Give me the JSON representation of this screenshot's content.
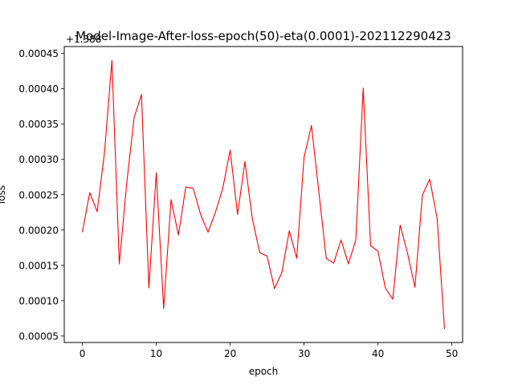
{
  "chart_data": {
    "type": "line",
    "title": "Model-Image-After-loss-epoch(50)-eta(0.0001)-202112290423",
    "xlabel": "epoch",
    "ylabel": "loss",
    "offset_label": "+1.388",
    "xlim": [
      -2.45,
      51.45
    ],
    "ylim": [
      4.08e-05,
      0.0004598
    ],
    "xticks": [
      0,
      10,
      20,
      30,
      40,
      50
    ],
    "xtick_labels": [
      "0",
      "10",
      "20",
      "30",
      "40",
      "50"
    ],
    "yticks": [
      5e-05,
      0.0001,
      0.00015,
      0.0002,
      0.00025,
      0.0003,
      0.00035,
      0.0004,
      0.00045
    ],
    "ytick_labels": [
      "0.00005",
      "0.00010",
      "0.00015",
      "0.00020",
      "0.00025",
      "0.00030",
      "0.00035",
      "0.00040",
      "0.00045"
    ],
    "grid": false,
    "series": [
      {
        "color": "#ff0000",
        "x": [
          0,
          1,
          2,
          3,
          4,
          5,
          6,
          7,
          8,
          9,
          10,
          11,
          12,
          13,
          14,
          15,
          16,
          17,
          18,
          19,
          20,
          21,
          22,
          23,
          24,
          25,
          26,
          27,
          28,
          29,
          30,
          31,
          32,
          33,
          34,
          35,
          36,
          37,
          38,
          39,
          40,
          41,
          42,
          43,
          44,
          45,
          46,
          47,
          48,
          49
        ],
        "values": [
          0.000197,
          0.000253,
          0.000226,
          0.00031,
          0.00044,
          0.000152,
          0.000266,
          0.000359,
          0.000392,
          0.000118,
          0.000281,
          8.9e-05,
          0.000243,
          0.000193,
          0.000261,
          0.000259,
          0.000222,
          0.000197,
          0.000225,
          0.000259,
          0.000313,
          0.000222,
          0.000297,
          0.000216,
          0.000168,
          0.000163,
          0.000117,
          0.00014,
          0.000199,
          0.00016,
          0.000303,
          0.000348,
          0.000254,
          0.00016,
          0.000153,
          0.000186,
          0.000152,
          0.000186,
          0.000401,
          0.000178,
          0.00017,
          0.000118,
          0.000102,
          0.000207,
          0.000167,
          0.000119,
          0.000249,
          0.000272,
          0.000217,
          6e-05
        ]
      }
    ]
  }
}
